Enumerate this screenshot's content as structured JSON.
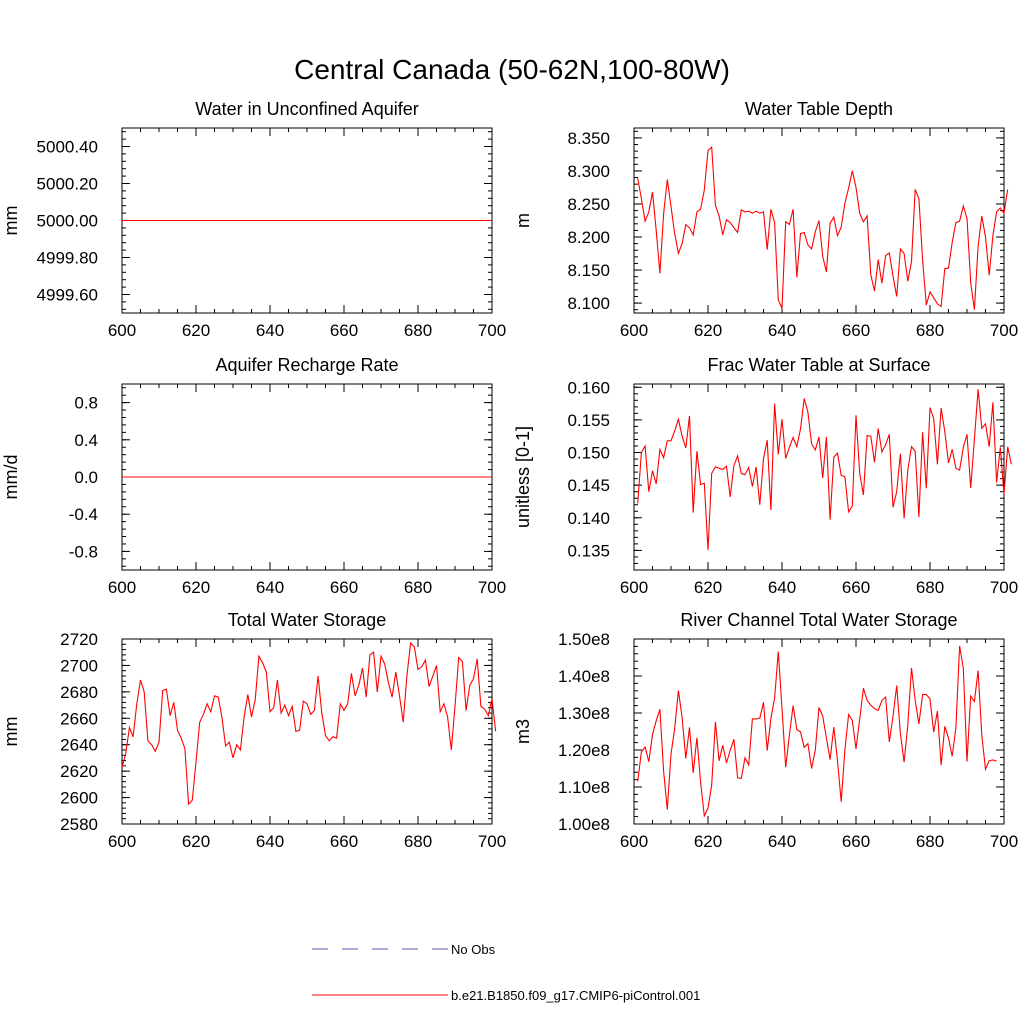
{
  "title": "Central Canada (50-62N,100-80W)",
  "colors": {
    "series": "#ff0000",
    "obs": "#5a5aaa",
    "axis": "#000000"
  },
  "legend": {
    "items": [
      {
        "label": "No Obs",
        "style": "dashed",
        "color": "#5a5aaa"
      },
      {
        "label": "b.e21.B1850.f09_g17.CMIP6-piControl.001",
        "style": "solid",
        "color": "#ff0000"
      }
    ]
  },
  "chart_data": [
    {
      "id": "aquifer-water",
      "type": "line",
      "title": "Water in Unconfined Aquifer",
      "ylabel": "mm",
      "xlim": [
        600,
        700
      ],
      "ylim": [
        4999.5,
        5000.5
      ],
      "xticks": [
        600,
        620,
        640,
        660,
        680,
        700
      ],
      "yticks": [
        4999.6,
        4999.8,
        5000.0,
        5000.2,
        5000.4
      ],
      "ytick_labels": [
        "4999.60",
        "4999.80",
        "5000.00",
        "5000.20",
        "5000.40"
      ],
      "series": [
        {
          "name": "b.e21.B1850.f09_g17.CMIP6-piControl.001",
          "x": [
            600,
            700
          ],
          "values": [
            5000.0,
            5000.0
          ]
        }
      ]
    },
    {
      "id": "water-table-depth",
      "type": "line",
      "title": "Water Table Depth",
      "ylabel": "m",
      "xlim": [
        600,
        700
      ],
      "ylim": [
        8.085,
        8.365
      ],
      "xticks": [
        600,
        620,
        640,
        660,
        680,
        700
      ],
      "yticks": [
        8.1,
        8.15,
        8.2,
        8.25,
        8.3,
        8.35
      ],
      "ytick_labels": [
        "8.100",
        "8.150",
        "8.200",
        "8.250",
        "8.300",
        "8.350"
      ],
      "series": [
        {
          "name": "b.e21.B1850.f09_g17.CMIP6-piControl.001",
          "x_start": 601,
          "x_step": 1,
          "values": [
            8.289,
            8.258,
            8.224,
            8.238,
            8.268,
            8.21,
            8.145,
            8.235,
            8.287,
            8.246,
            8.205,
            8.175,
            8.19,
            8.219,
            8.214,
            8.203,
            8.238,
            8.242,
            8.271,
            8.331,
            8.336,
            8.248,
            8.232,
            8.203,
            8.226,
            8.222,
            8.214,
            8.207,
            8.241,
            8.238,
            8.239,
            8.236,
            8.239,
            8.236,
            8.238,
            8.181,
            8.242,
            8.222,
            8.105,
            8.092,
            8.223,
            8.219,
            8.242,
            8.139,
            8.205,
            8.207,
            8.188,
            8.182,
            8.208,
            8.225,
            8.171,
            8.147,
            8.221,
            8.23,
            8.202,
            8.215,
            8.251,
            8.274,
            8.3,
            8.275,
            8.236,
            8.223,
            8.232,
            8.143,
            8.118,
            8.166,
            8.13,
            8.172,
            8.176,
            8.141,
            8.11,
            8.182,
            8.175,
            8.133,
            8.163,
            8.272,
            8.258,
            8.165,
            8.097,
            8.117,
            8.108,
            8.099,
            8.095,
            8.152,
            8.153,
            8.192,
            8.222,
            8.224,
            8.247,
            8.228,
            8.131,
            8.09,
            8.186,
            8.232,
            8.2,
            8.142,
            8.202,
            8.238,
            8.244,
            8.236,
            8.272
          ]
        }
      ]
    },
    {
      "id": "aquifer-recharge",
      "type": "line",
      "title": "Aquifer Recharge Rate",
      "ylabel": "mm/d",
      "xlim": [
        600,
        700
      ],
      "ylim": [
        -1.0,
        1.0
      ],
      "xticks": [
        600,
        620,
        640,
        660,
        680,
        700
      ],
      "yticks": [
        -0.8,
        -0.4,
        0.0,
        0.4,
        0.8
      ],
      "ytick_labels": [
        "-0.8",
        "-0.4",
        "0.0",
        "0.4",
        "0.8"
      ],
      "series": [
        {
          "name": "b.e21.B1850.f09_g17.CMIP6-piControl.001",
          "x": [
            600,
            700
          ],
          "values": [
            0.0,
            0.0
          ]
        }
      ]
    },
    {
      "id": "frac-water-table",
      "type": "line",
      "title": "Frac Water Table at Surface",
      "ylabel": "unitless [0-1]",
      "xlim": [
        600,
        700
      ],
      "ylim": [
        0.132,
        0.1605
      ],
      "xticks": [
        600,
        620,
        640,
        660,
        680,
        700
      ],
      "yticks": [
        0.135,
        0.14,
        0.145,
        0.15,
        0.155,
        0.16
      ],
      "ytick_labels": [
        "0.135",
        "0.140",
        "0.145",
        "0.150",
        "0.155",
        "0.160"
      ],
      "series": [
        {
          "name": "b.e21.B1850.f09_g17.CMIP6-piControl.001",
          "x_start": 601,
          "x_step": 1,
          "values": [
            0.1422,
            0.15,
            0.151,
            0.144,
            0.1472,
            0.1452,
            0.1505,
            0.1492,
            0.1518,
            0.1518,
            0.1533,
            0.1551,
            0.1525,
            0.1507,
            0.1556,
            0.1408,
            0.1502,
            0.1451,
            0.1453,
            0.1351,
            0.1468,
            0.1478,
            0.1476,
            0.1474,
            0.1479,
            0.1432,
            0.148,
            0.1495,
            0.1468,
            0.1466,
            0.1477,
            0.1448,
            0.1478,
            0.142,
            0.1491,
            0.1519,
            0.1412,
            0.1575,
            0.1497,
            0.1551,
            0.1491,
            0.1508,
            0.1523,
            0.1509,
            0.1536,
            0.1583,
            0.1562,
            0.1513,
            0.1504,
            0.1524,
            0.1461,
            0.1524,
            0.1397,
            0.1493,
            0.1499,
            0.1465,
            0.1463,
            0.1409,
            0.1418,
            0.1557,
            0.1468,
            0.1435,
            0.1526,
            0.1525,
            0.1485,
            0.1537,
            0.1501,
            0.1512,
            0.1528,
            0.1416,
            0.144,
            0.1498,
            0.1399,
            0.1473,
            0.1509,
            0.1502,
            0.1401,
            0.1531,
            0.1445,
            0.1569,
            0.1552,
            0.1482,
            0.1568,
            0.1532,
            0.1484,
            0.1505,
            0.1476,
            0.1473,
            0.1508,
            0.1528,
            0.1446,
            0.152,
            0.1597,
            0.1537,
            0.1544,
            0.1509,
            0.1577,
            0.1454,
            0.1508,
            0.1436,
            0.1509,
            0.1482
          ]
        }
      ]
    },
    {
      "id": "total-water-storage",
      "type": "line",
      "title": "Total Water Storage",
      "ylabel": "mm",
      "xlim": [
        600,
        700
      ],
      "ylim": [
        2580,
        2720
      ],
      "xticks": [
        600,
        620,
        640,
        660,
        680,
        700
      ],
      "yticks": [
        2580,
        2600,
        2620,
        2640,
        2660,
        2680,
        2700,
        2720
      ],
      "ytick_labels": [
        "2580",
        "2600",
        "2620",
        "2640",
        "2660",
        "2680",
        "2700",
        "2720"
      ],
      "series": [
        {
          "name": "b.e21.B1850.f09_g17.CMIP6-piControl.001",
          "x_start": 600,
          "x_step": 1,
          "values": [
            2623,
            2633,
            2653,
            2646,
            2671,
            2689,
            2680,
            2643,
            2640,
            2635,
            2642,
            2681,
            2682,
            2662,
            2672,
            2651,
            2645,
            2637,
            2595,
            2598,
            2627,
            2657,
            2663,
            2671,
            2665,
            2677,
            2676,
            2661,
            2639,
            2642,
            2630,
            2640,
            2636,
            2661,
            2678,
            2661,
            2674,
            2707,
            2702,
            2695,
            2665,
            2668,
            2689,
            2664,
            2670,
            2662,
            2669,
            2650,
            2651,
            2673,
            2671,
            2663,
            2666,
            2692,
            2664,
            2647,
            2643,
            2646,
            2645,
            2671,
            2666,
            2671,
            2694,
            2677,
            2685,
            2698,
            2676,
            2708,
            2710,
            2680,
            2707,
            2701,
            2687,
            2676,
            2695,
            2677,
            2657,
            2692,
            2717,
            2714,
            2697,
            2699,
            2704,
            2684,
            2692,
            2700,
            2665,
            2671,
            2661,
            2636,
            2669,
            2706,
            2703,
            2666,
            2685,
            2690,
            2705,
            2669,
            2667,
            2662,
            2675,
            2650
          ]
        }
      ]
    },
    {
      "id": "river-channel-storage",
      "type": "line",
      "title": "River Channel Total Water Storage",
      "ylabel": "m3",
      "xlim": [
        600,
        700
      ],
      "ylim": [
        100000000,
        150000000
      ],
      "xticks": [
        600,
        620,
        640,
        660,
        680,
        700
      ],
      "yticks": [
        100000000,
        110000000,
        120000000,
        130000000,
        140000000,
        150000000
      ],
      "ytick_labels": [
        "1.00e8",
        "1.10e8",
        "1.20e8",
        "1.30e8",
        "1.40e8",
        "1.50e8"
      ],
      "series": [
        {
          "name": "b.e21.B1850.f09_g17.CMIP6-piControl.001",
          "x_start": 601,
          "x_step": 1,
          "values": [
            111500000,
            119500000,
            120800000,
            116800000,
            124200000,
            127900000,
            131000000,
            114300000,
            103900000,
            118900000,
            125800000,
            136100000,
            128800000,
            117700000,
            126100000,
            113800000,
            123300000,
            111300000,
            102200000,
            104300000,
            110600000,
            127600000,
            117100000,
            121300000,
            116500000,
            119900000,
            122900000,
            112500000,
            112300000,
            117900000,
            116000000,
            128400000,
            128400000,
            128600000,
            132900000,
            119800000,
            128500000,
            134000000,
            146600000,
            131200000,
            115400000,
            124000000,
            132000000,
            125500000,
            124900000,
            120700000,
            121700000,
            115000000,
            120000000,
            131500000,
            129200000,
            123300000,
            117400000,
            126200000,
            117100000,
            106000000,
            120000000,
            129600000,
            128000000,
            120300000,
            128300000,
            136700000,
            133400000,
            132100000,
            131200000,
            130700000,
            133400000,
            134300000,
            122200000,
            129100000,
            137400000,
            124400000,
            116700000,
            126700000,
            142200000,
            133400000,
            127000000,
            135000000,
            135000000,
            133800000,
            124800000,
            130500000,
            115900000,
            126400000,
            123200000,
            118300000,
            126000000,
            148100000,
            142200000,
            116900000,
            134600000,
            133100000,
            141500000,
            124000000,
            114800000,
            117100000,
            117300000,
            117000000
          ]
        }
      ]
    }
  ]
}
